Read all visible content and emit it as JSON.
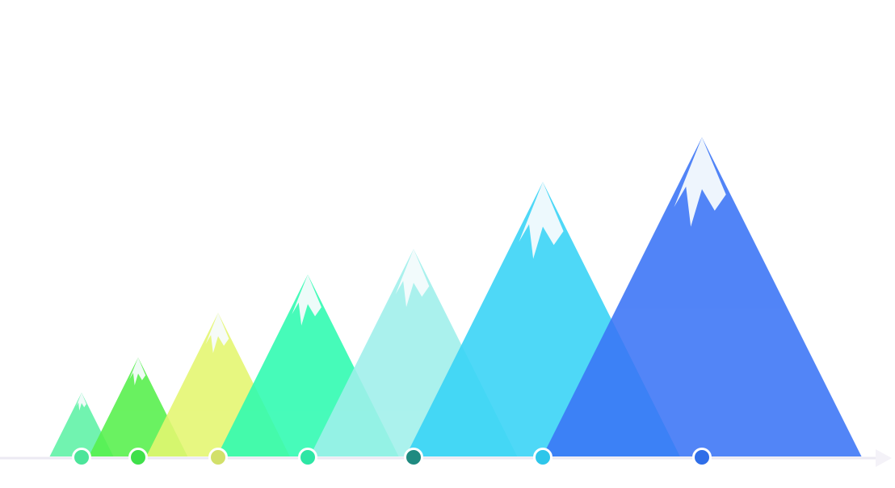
{
  "chart_data": {
    "type": "pictorial-bar",
    "shape": "snow-capped-mountain",
    "grid": false,
    "legend": "none",
    "x_axis_visible": true,
    "y_axis_visible": false,
    "categories": [
      "",
      "",
      "",
      "",
      "",
      "",
      ""
    ],
    "ylim": [
      0,
      100
    ],
    "series": [
      {
        "values": [
          20,
          31,
          45,
          57,
          65,
          86,
          100
        ]
      }
    ],
    "colors": {
      "mountains": [
        "#5ef2a6",
        "#55f04b",
        "#e4f66f",
        "#2dfbb0",
        "#9ff0eb",
        "#36d3f6",
        "#3a74f6"
      ],
      "markers": [
        "#4ce59a",
        "#3fe04a",
        "#d2e06a",
        "#2de6a4",
        "#1f8a80",
        "#2ec6ea",
        "#2f6ee8"
      ],
      "snow": "#f5fbfd",
      "axis_line": "#eceaf3",
      "marker_stroke": "#ffffff"
    },
    "opacity": 0.88
  }
}
